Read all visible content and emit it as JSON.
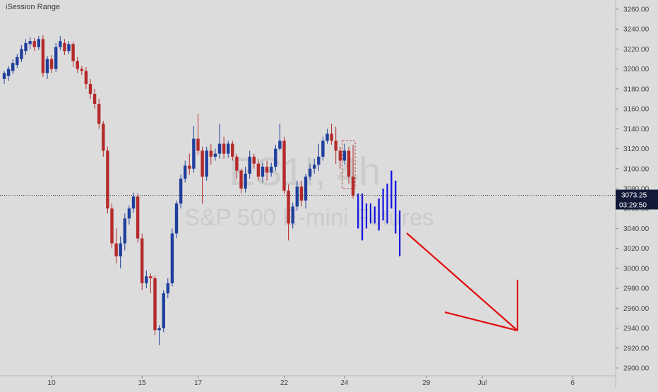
{
  "indicator_label": "iSession Range",
  "watermark": {
    "symbol": "ES1!, 4h",
    "name": "S&P 500 E-mini Futures"
  },
  "price_axis": {
    "ticks": [
      "3260.00",
      "3240.00",
      "3220.00",
      "3200.00",
      "3180.00",
      "3160.00",
      "3140.00",
      "3120.00",
      "3100.00",
      "3080.00",
      "3060.00",
      "3040.00",
      "3020.00",
      "3000.00",
      "2980.00",
      "2960.00",
      "2940.00",
      "2920.00",
      "2900.00"
    ],
    "current_price": "3073.25",
    "countdown": "03:29:50"
  },
  "time_axis": {
    "labels": [
      "10",
      "15",
      "17",
      "22",
      "24",
      "29",
      "Jul",
      "6"
    ]
  },
  "colors": {
    "background": "#dcdcdc",
    "up_candle": "#1e3f9c",
    "down_candle": "#b52a2a",
    "projection_bars": "#1010e0",
    "arrow": "#e01010",
    "price_badge": "#121a38"
  },
  "chart_data": {
    "type": "candlestick",
    "symbol": "ES1!",
    "interval": "4h",
    "instrument": "S&P 500 E-mini Futures",
    "ylim": [
      2893,
      3265
    ],
    "y_ticks": [
      2900,
      2920,
      2940,
      2960,
      2980,
      3000,
      3020,
      3040,
      3060,
      3080,
      3100,
      3120,
      3140,
      3160,
      3180,
      3200,
      3220,
      3240,
      3260
    ],
    "x_ticks": [
      "10",
      "15",
      "17",
      "22",
      "24",
      "29",
      "Jul",
      "6"
    ],
    "last_price": 3073.25,
    "candles": [
      [
        3190,
        3196,
        3185,
        3198
      ],
      [
        3193,
        3200,
        3188,
        3203
      ],
      [
        3198,
        3206,
        3195,
        3210
      ],
      [
        3204,
        3212,
        3201,
        3215
      ],
      [
        3210,
        3220,
        3207,
        3224
      ],
      [
        3218,
        3226,
        3214,
        3230
      ],
      [
        3225,
        3228,
        3220,
        3232
      ],
      [
        3228,
        3222,
        3218,
        3231
      ],
      [
        3222,
        3230,
        3219,
        3233
      ],
      [
        3230,
        3196,
        3192,
        3234
      ],
      [
        3196,
        3210,
        3190,
        3213
      ],
      [
        3210,
        3200,
        3196,
        3214
      ],
      [
        3200,
        3222,
        3197,
        3226
      ],
      [
        3222,
        3228,
        3219,
        3233
      ],
      [
        3226,
        3218,
        3214,
        3230
      ],
      [
        3218,
        3225,
        3215,
        3228
      ],
      [
        3225,
        3208,
        3202,
        3227
      ],
      [
        3208,
        3200,
        3196,
        3212
      ],
      [
        3200,
        3198,
        3194,
        3203
      ],
      [
        3198,
        3185,
        3180,
        3202
      ],
      [
        3185,
        3175,
        3170,
        3190
      ],
      [
        3175,
        3165,
        3160,
        3180
      ],
      [
        3165,
        3145,
        3140,
        3170
      ],
      [
        3145,
        3118,
        3112,
        3148
      ],
      [
        3118,
        3060,
        3055,
        3122
      ],
      [
        3060,
        3025,
        3020,
        3065
      ],
      [
        3025,
        3012,
        3005,
        3040
      ],
      [
        3012,
        3025,
        3000,
        3032
      ],
      [
        3025,
        3050,
        3018,
        3055
      ],
      [
        3050,
        3060,
        3044,
        3063
      ],
      [
        3060,
        3072,
        3056,
        3076
      ],
      [
        3072,
        3030,
        3026,
        3075
      ],
      [
        3030,
        2985,
        2978,
        3035
      ],
      [
        2985,
        2992,
        2980,
        2998
      ],
      [
        2992,
        2990,
        2975,
        2995
      ],
      [
        2990,
        2938,
        2933,
        2993
      ],
      [
        2938,
        2940,
        2923,
        2943
      ],
      [
        2940,
        2975,
        2936,
        2978
      ],
      [
        2975,
        2985,
        2970,
        2990
      ],
      [
        2985,
        3035,
        2982,
        3040
      ],
      [
        3035,
        3065,
        3030,
        3068
      ],
      [
        3065,
        3090,
        3060,
        3094
      ],
      [
        3090,
        3103,
        3086,
        3108
      ],
      [
        3103,
        3100,
        3094,
        3115
      ],
      [
        3100,
        3130,
        3096,
        3143
      ],
      [
        3130,
        3118,
        3114,
        3155
      ],
      [
        3118,
        3092,
        3065,
        3122
      ],
      [
        3092,
        3118,
        3088,
        3122
      ],
      [
        3118,
        3112,
        3104,
        3125
      ],
      [
        3112,
        3115,
        3108,
        3120
      ],
      [
        3115,
        3125,
        3110,
        3145
      ],
      [
        3125,
        3115,
        3110,
        3132
      ],
      [
        3115,
        3125,
        3111,
        3128
      ],
      [
        3125,
        3112,
        3108,
        3128
      ],
      [
        3112,
        3098,
        3090,
        3115
      ],
      [
        3098,
        3080,
        3075,
        3100
      ],
      [
        3080,
        3095,
        3076,
        3102
      ],
      [
        3095,
        3112,
        3090,
        3118
      ],
      [
        3112,
        3105,
        3100,
        3115
      ],
      [
        3105,
        3092,
        3088,
        3110
      ],
      [
        3092,
        3102,
        3086,
        3106
      ],
      [
        3102,
        3096,
        3088,
        3108
      ],
      [
        3096,
        3102,
        3092,
        3106
      ],
      [
        3102,
        3120,
        3098,
        3124
      ],
      [
        3120,
        3128,
        3118,
        3145
      ],
      [
        3128,
        3078,
        3075,
        3132
      ],
      [
        3078,
        3045,
        3028,
        3084
      ],
      [
        3045,
        3062,
        3040,
        3066
      ],
      [
        3062,
        3082,
        3058,
        3088
      ],
      [
        3082,
        3068,
        3062,
        3088
      ],
      [
        3068,
        3092,
        3060,
        3095
      ],
      [
        3092,
        3100,
        3088,
        3105
      ],
      [
        3100,
        3104,
        3095,
        3110
      ],
      [
        3104,
        3112,
        3098,
        3125
      ],
      [
        3112,
        3128,
        3108,
        3132
      ],
      [
        3128,
        3135,
        3125,
        3140
      ],
      [
        3135,
        3128,
        3124,
        3145
      ],
      [
        3128,
        3118,
        3105,
        3142
      ],
      [
        3118,
        3108,
        3100,
        3122
      ],
      [
        3108,
        3118,
        3104,
        3125
      ],
      [
        3118,
        3092,
        3085,
        3122
      ],
      [
        3092,
        3073,
        3070,
        3124
      ]
    ],
    "projection_ranges": [
      [
        3040,
        3075
      ],
      [
        3028,
        3075
      ],
      [
        3040,
        3065
      ],
      [
        3045,
        3065
      ],
      [
        3045,
        3062
      ],
      [
        3038,
        3070
      ],
      [
        3048,
        3080
      ],
      [
        3045,
        3085
      ],
      [
        3060,
        3098
      ],
      [
        3035,
        3088
      ],
      [
        3012,
        3058
      ]
    ],
    "annotation": {
      "type": "arrow",
      "from": [
        "t+14",
        3035
      ],
      "to": [
        "t+39",
        2938
      ],
      "head_ends": [
        [
          "t+29",
          2956
        ],
        [
          "t+39",
          2988
        ]
      ]
    }
  }
}
